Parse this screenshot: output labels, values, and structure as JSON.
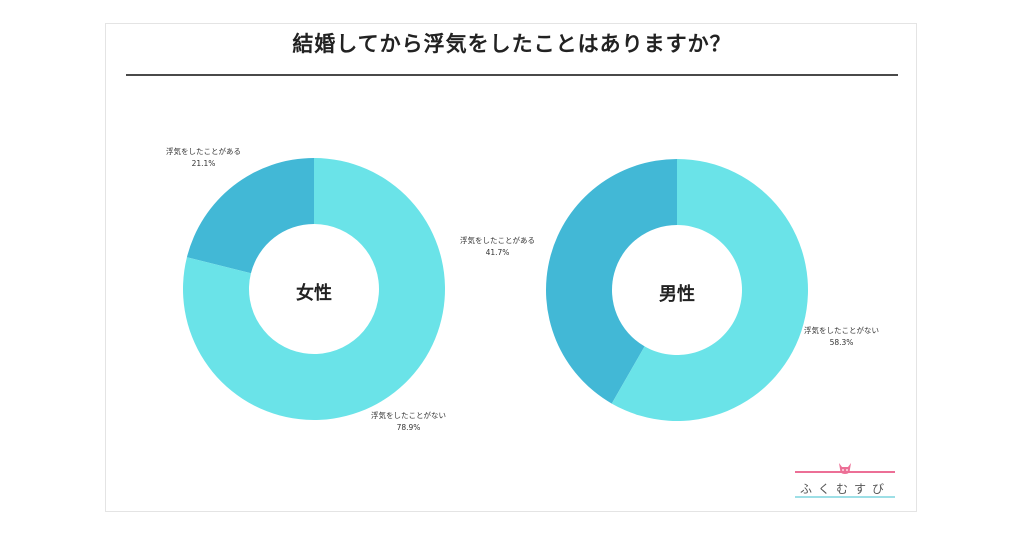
{
  "title": "結婚してから浮気をしたことはありますか？",
  "logo": {
    "text": "ふくむすび",
    "pink": "#EC6F96",
    "cyan": "#9DDFE6"
  },
  "colors": {
    "yes": "#42B8D6",
    "no": "#6AE3E8"
  },
  "charts": [
    {
      "center_label": "女性",
      "yes": {
        "label": "浮気をしたことがある",
        "value": "21.1%"
      },
      "no": {
        "label": "浮気をしたことがない",
        "value": "78.9%"
      }
    },
    {
      "center_label": "男性",
      "yes": {
        "label": "浮気をしたことがある",
        "value": "41.7%"
      },
      "no": {
        "label": "浮気をしたことがない",
        "value": "58.3%"
      }
    }
  ],
  "chart_data": [
    {
      "type": "pie",
      "subtype": "donut",
      "title": "結婚してから浮気をしたことはありますか？",
      "center_label": "女性",
      "categories": [
        "浮気をしたことがある",
        "浮気をしたことがない"
      ],
      "values": [
        21.1,
        78.9
      ],
      "colors": [
        "#42B8D6",
        "#6AE3E8"
      ],
      "unit": "%"
    },
    {
      "type": "pie",
      "subtype": "donut",
      "title": "結婚してから浮気をしたことはありますか？",
      "center_label": "男性",
      "categories": [
        "浮気をしたことがある",
        "浮気をしたことがない"
      ],
      "values": [
        41.7,
        58.3
      ],
      "colors": [
        "#42B8D6",
        "#6AE3E8"
      ],
      "unit": "%"
    }
  ]
}
